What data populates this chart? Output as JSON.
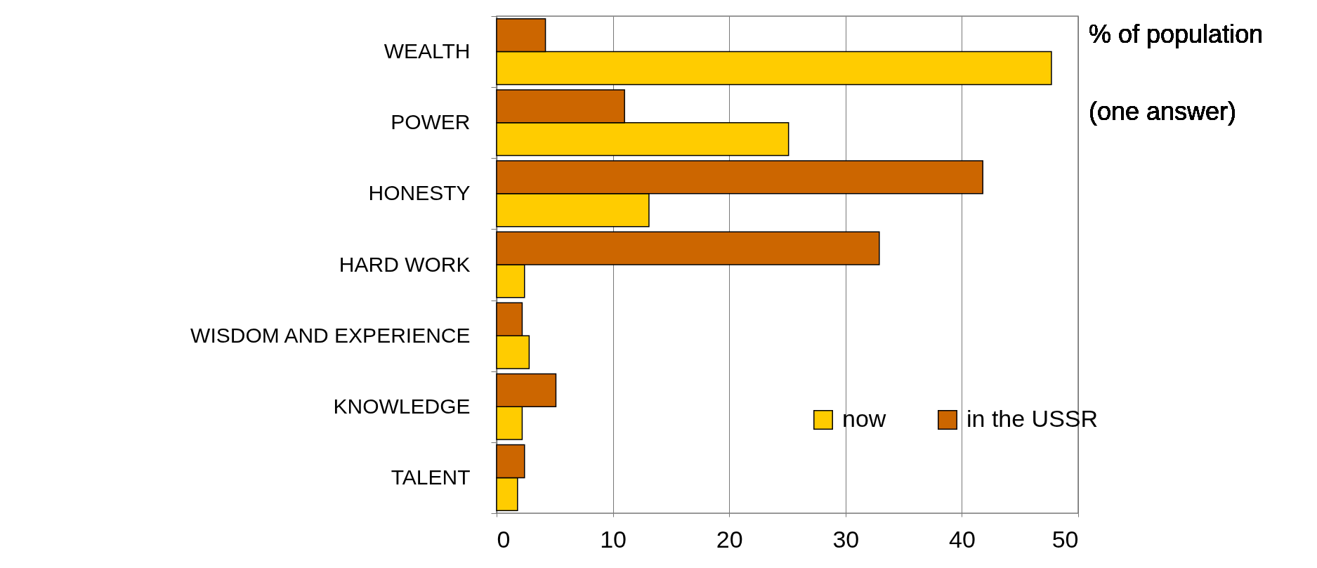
{
  "chart_data": {
    "type": "bar",
    "orientation": "horizontal",
    "categories": [
      "WEALTH",
      "POWER",
      "HONESTY",
      "HARD WORK",
      "WISDOM AND EXPERIENCE",
      "KNOWLEDGE",
      "TALENT"
    ],
    "series": [
      {
        "name": "now",
        "color": "#ffcc00",
        "values": [
          47.7,
          25.1,
          13.1,
          2.4,
          2.8,
          2.2,
          1.8
        ]
      },
      {
        "name": "in the USSR",
        "color": "#cc6600",
        "values": [
          4.2,
          11.0,
          41.8,
          32.9,
          2.2,
          5.1,
          2.4
        ]
      }
    ],
    "xlim": [
      0,
      50
    ],
    "xticks": [
      0,
      10,
      20,
      30,
      40,
      50
    ],
    "grid": "x",
    "legend": "bottom right",
    "annotations": [
      "% of population",
      "(one answer)"
    ]
  }
}
